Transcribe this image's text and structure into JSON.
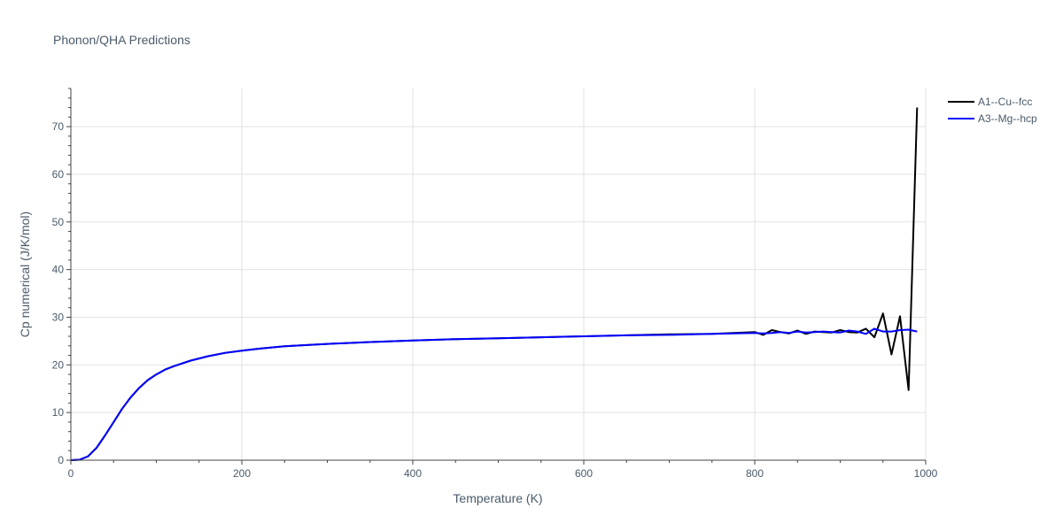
{
  "chart_data": {
    "type": "line",
    "title": "Phonon/QHA Predictions",
    "xlabel": "Temperature (K)",
    "ylabel": "Cp numerical (J/K/mol)",
    "xlim": [
      0,
      1000
    ],
    "ylim": [
      0,
      78
    ],
    "xticks": [
      0,
      200,
      400,
      600,
      800,
      1000
    ],
    "yticks": [
      0,
      10,
      20,
      30,
      40,
      50,
      60,
      70
    ],
    "grid": true,
    "legend_position": "top-right",
    "series": [
      {
        "name": "A1--Cu--fcc",
        "color": "#000000",
        "x": [
          0,
          10,
          20,
          30,
          40,
          50,
          60,
          70,
          80,
          90,
          100,
          110,
          120,
          140,
          160,
          180,
          200,
          220,
          250,
          300,
          350,
          400,
          450,
          500,
          550,
          600,
          650,
          700,
          750,
          800,
          810,
          820,
          830,
          840,
          850,
          860,
          870,
          880,
          890,
          900,
          910,
          920,
          930,
          940,
          950,
          960,
          970,
          980,
          990
        ],
        "values": [
          0,
          0.1,
          0.8,
          2.6,
          5.2,
          8.0,
          10.8,
          13.2,
          15.2,
          16.8,
          18.0,
          19.0,
          19.7,
          20.9,
          21.8,
          22.5,
          23.0,
          23.4,
          23.9,
          24.4,
          24.8,
          25.1,
          25.4,
          25.6,
          25.8,
          26.0,
          26.2,
          26.4,
          26.5,
          26.9,
          26.3,
          27.3,
          26.9,
          26.6,
          27.2,
          26.5,
          27.0,
          26.9,
          26.8,
          27.3,
          26.9,
          26.8,
          27.6,
          25.8,
          30.8,
          22.2,
          30.2,
          14.7,
          74.0
        ]
      },
      {
        "name": "A3--Mg--hcp",
        "color": "#0000ff",
        "x": [
          0,
          10,
          20,
          30,
          40,
          50,
          60,
          70,
          80,
          90,
          100,
          110,
          120,
          140,
          160,
          180,
          200,
          220,
          250,
          300,
          350,
          400,
          450,
          500,
          550,
          600,
          650,
          700,
          750,
          800,
          810,
          820,
          830,
          840,
          850,
          860,
          870,
          880,
          890,
          900,
          910,
          920,
          930,
          940,
          950,
          960,
          970,
          980,
          990
        ],
        "values": [
          0,
          0.1,
          0.8,
          2.6,
          5.2,
          8.0,
          10.8,
          13.2,
          15.2,
          16.8,
          18.0,
          19.0,
          19.7,
          20.9,
          21.8,
          22.5,
          23.0,
          23.4,
          23.9,
          24.4,
          24.8,
          25.1,
          25.4,
          25.6,
          25.8,
          26.0,
          26.2,
          26.3,
          26.5,
          26.7,
          26.6,
          26.7,
          26.9,
          26.7,
          27.0,
          26.8,
          26.9,
          27.0,
          26.9,
          26.8,
          27.2,
          27.0,
          26.5,
          27.6,
          27.0,
          27.0,
          27.3,
          27.4,
          27.0
        ]
      }
    ]
  }
}
